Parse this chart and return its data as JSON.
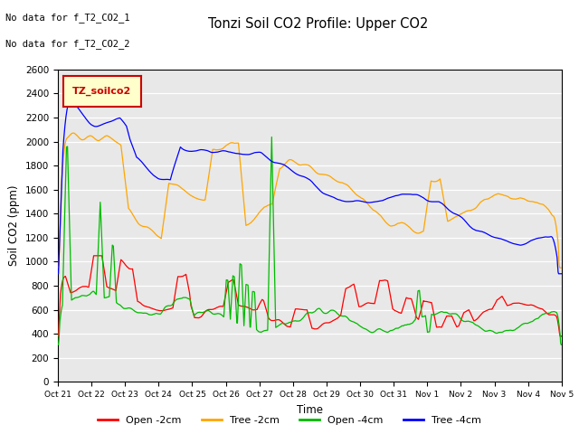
{
  "title": "Tonzi Soil CO2 Profile: Upper CO2",
  "xlabel": "Time",
  "ylabel": "Soil CO2 (ppm)",
  "ylim": [
    0,
    2600
  ],
  "annotation1": "No data for f_T2_CO2_1",
  "annotation2": "No data for f_T2_CO2_2",
  "legend_label": "TZ_soilco2",
  "legend_labels": [
    "Open -2cm",
    "Tree -2cm",
    "Open -4cm",
    "Tree -4cm"
  ],
  "legend_colors": [
    "#ff0000",
    "#ffa500",
    "#00bb00",
    "#0000ff"
  ],
  "tick_labels": [
    "Oct 21",
    "Oct 22",
    "Oct 23",
    "Oct 24",
    "Oct 25",
    "Oct 26",
    "Oct 27",
    "Oct 28",
    "Oct 29",
    "Oct 30",
    "Oct 31",
    "Nov 1",
    "Nov 2",
    "Nov 3",
    "Nov 4",
    "Nov 5"
  ],
  "bg_color": "#e8e8e8",
  "plot_bg": "#ffffff"
}
